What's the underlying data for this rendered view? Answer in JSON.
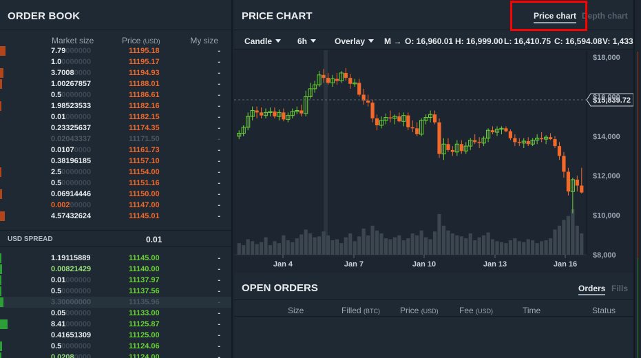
{
  "order_book": {
    "title": "ORDER BOOK",
    "columns": {
      "size": "Market size",
      "price": "Price",
      "price_unit": "(USD)",
      "my": "My size"
    },
    "asks": [
      {
        "size": "7.79",
        "dim": "000000",
        "price": "11195.18",
        "my": "-"
      },
      {
        "size": "1.0",
        "dim": "0000000",
        "price": "11195.17",
        "my": "-"
      },
      {
        "size": "3.7008",
        "dim": "0000",
        "price": "11194.93",
        "my": "-"
      },
      {
        "size": "1.00267857",
        "dim": "",
        "price": "11188.01",
        "my": "-"
      },
      {
        "size": "0.5",
        "dim": "0000000",
        "price": "11186.61",
        "my": "-"
      },
      {
        "size": "1.98523533",
        "dim": "",
        "price": "11182.16",
        "my": "-"
      },
      {
        "size": "0.01",
        "dim": "000000",
        "price": "11182.15",
        "my": "-"
      },
      {
        "size": "0.23325637",
        "dim": "",
        "price": "11174.35",
        "my": "-"
      },
      {
        "size": "0.02043337",
        "dim": "",
        "price": "11171.50",
        "my": "-"
      },
      {
        "size": "0.0107",
        "dim": "0000",
        "price": "11161.73",
        "my": "-"
      },
      {
        "size": "0.38196185",
        "dim": "",
        "price": "11157.10",
        "my": "-"
      },
      {
        "size": "2.5",
        "dim": "0000000",
        "price": "11154.00",
        "my": "-"
      },
      {
        "size": "0.5",
        "dim": "0000000",
        "price": "11151.16",
        "my": "-"
      },
      {
        "size": "0.06914446",
        "dim": "",
        "price": "11150.00",
        "my": "-"
      },
      {
        "size": "0.002",
        "dim": "00000",
        "price": "11147.00",
        "my": "-"
      },
      {
        "size": "4.57432624",
        "dim": "",
        "price": "11145.01",
        "my": "-"
      }
    ],
    "spread": {
      "label": "USD SPREAD",
      "value": "0.01"
    },
    "bids": [
      {
        "size": "1.19115889",
        "dim": "",
        "price": "11145.00",
        "my": "-"
      },
      {
        "size": "0.00821429",
        "dim": "",
        "price": "11140.00",
        "my": "-"
      },
      {
        "size": "0.01",
        "dim": "000000",
        "price": "11137.97",
        "my": "-"
      },
      {
        "size": "0.5",
        "dim": "0000000",
        "price": "11137.56",
        "my": "-"
      },
      {
        "size": "3.30000000",
        "dim": "",
        "price": "11135.96",
        "my": "-"
      },
      {
        "size": "0.05",
        "dim": "000000",
        "price": "11133.00",
        "my": "-"
      },
      {
        "size": "8.41",
        "dim": "000000",
        "price": "11125.87",
        "my": "-"
      },
      {
        "size": "0.41651309",
        "dim": "",
        "price": "11125.00",
        "my": "-"
      },
      {
        "size": "0.5",
        "dim": "0000000",
        "price": "11124.06",
        "my": "-"
      },
      {
        "size": "0.0208",
        "dim": "0000",
        "price": "11124.00",
        "my": "-"
      }
    ]
  },
  "price_chart": {
    "title": "PRICE CHART",
    "tabs": {
      "price": "Price chart",
      "depth": "Depth chart"
    },
    "toolbar": {
      "candle": "Candle",
      "interval": "6h",
      "overlay": "Overlay",
      "more": "M →",
      "open": "O: 16,960.01",
      "high": "H: 16,999.00",
      "low": "L: 16,410.75",
      "close": "C: 16,594.08",
      "volume": "V: 1,433"
    },
    "current_price_label": "$15,839.72"
  },
  "chart_data": {
    "type": "candlestick",
    "yticks": [
      "$18,000",
      "$16,000",
      "$14,000",
      "$12,000",
      "$10,000",
      "$8,000"
    ],
    "xticks": [
      "Jan 4",
      "Jan 7",
      "Jan 10",
      "Jan 13",
      "Jan 16"
    ],
    "ylim": [
      8000,
      18300
    ],
    "current_price": 15839.72,
    "colors": {
      "up": "#6cd336",
      "down": "#f2692a",
      "volume": "#3c464f"
    },
    "candles": [
      [
        14000,
        14300,
        13850,
        14150,
        0.12
      ],
      [
        14150,
        14550,
        14000,
        14450,
        0.1
      ],
      [
        14450,
        15200,
        14300,
        15000,
        0.16
      ],
      [
        15000,
        15500,
        14800,
        15300,
        0.14
      ],
      [
        15300,
        15500,
        14900,
        15200,
        0.11
      ],
      [
        15200,
        15450,
        14900,
        15050,
        0.13
      ],
      [
        15050,
        15400,
        14900,
        15200,
        0.18
      ],
      [
        15200,
        15450,
        15000,
        15250,
        0.1
      ],
      [
        15250,
        15450,
        14900,
        15000,
        0.14
      ],
      [
        15000,
        15350,
        14800,
        15200,
        0.12
      ],
      [
        15200,
        15400,
        14750,
        14850,
        0.2
      ],
      [
        14850,
        15200,
        14700,
        15050,
        0.15
      ],
      [
        15050,
        15400,
        14900,
        15250,
        0.13
      ],
      [
        15250,
        15500,
        15100,
        15300,
        0.17
      ],
      [
        15300,
        15600,
        15000,
        15150,
        0.21
      ],
      [
        15150,
        16300,
        15000,
        16000,
        0.26
      ],
      [
        16000,
        16700,
        15900,
        16400,
        0.22
      ],
      [
        16400,
        16800,
        16200,
        16600,
        0.18
      ],
      [
        16600,
        17300,
        16500,
        17100,
        0.19
      ],
      [
        17100,
        17400,
        16700,
        16950,
        0.24
      ],
      [
        16950,
        17200,
        16600,
        16700,
        0.2
      ],
      [
        16700,
        17100,
        16500,
        16900,
        0.15
      ],
      [
        16900,
        17200,
        16600,
        16800,
        0.16
      ],
      [
        16800,
        17300,
        16700,
        17200,
        0.12
      ],
      [
        17200,
        17450,
        16800,
        16950,
        0.18
      ],
      [
        16950,
        17150,
        16400,
        16650,
        0.22
      ],
      [
        16650,
        16900,
        16500,
        16700,
        0.14
      ],
      [
        16700,
        16900,
        16000,
        16100,
        0.19
      ],
      [
        16100,
        16400,
        15600,
        15800,
        0.27
      ],
      [
        15800,
        16100,
        15500,
        15700,
        0.2
      ],
      [
        15700,
        15850,
        14700,
        14900,
        0.3
      ],
      [
        14900,
        15100,
        14300,
        14550,
        0.25
      ],
      [
        14550,
        15000,
        14400,
        14800,
        0.22
      ],
      [
        14800,
        15150,
        14600,
        14950,
        0.17
      ],
      [
        14950,
        15300,
        14700,
        14900,
        0.16
      ],
      [
        14900,
        15100,
        14600,
        15000,
        0.18
      ],
      [
        15000,
        15200,
        14700,
        14750,
        0.2
      ],
      [
        14750,
        15200,
        14500,
        15050,
        0.15
      ],
      [
        15050,
        15200,
        14300,
        14450,
        0.17
      ],
      [
        14450,
        14800,
        14200,
        14400,
        0.22
      ],
      [
        14400,
        14700,
        14000,
        14100,
        0.2
      ],
      [
        14100,
        14900,
        14000,
        14800,
        0.25
      ],
      [
        14800,
        15100,
        14600,
        14950,
        0.18
      ],
      [
        14950,
        15300,
        14700,
        15100,
        0.16
      ],
      [
        15100,
        15300,
        14600,
        14700,
        0.24
      ],
      [
        14700,
        14900,
        12900,
        13100,
        0.42
      ],
      [
        13100,
        13900,
        12800,
        13600,
        0.3
      ],
      [
        13600,
        13900,
        13200,
        13300,
        0.25
      ],
      [
        13300,
        13500,
        13000,
        13200,
        0.22
      ],
      [
        13200,
        13800,
        13000,
        13600,
        0.2
      ],
      [
        13600,
        13800,
        13100,
        13250,
        0.19
      ],
      [
        13250,
        13700,
        13100,
        13500,
        0.17
      ],
      [
        13500,
        13900,
        13300,
        13800,
        0.22
      ],
      [
        13800,
        14100,
        13600,
        13700,
        0.15
      ],
      [
        13700,
        13950,
        13400,
        13650,
        0.18
      ],
      [
        13650,
        14000,
        13500,
        13900,
        0.2
      ],
      [
        13900,
        14400,
        13700,
        14300,
        0.23
      ],
      [
        14300,
        14500,
        14100,
        14200,
        0.16
      ],
      [
        14200,
        14500,
        14000,
        14350,
        0.14
      ],
      [
        14350,
        14500,
        14100,
        14400,
        0.13
      ],
      [
        14400,
        14500,
        14200,
        14250,
        0.12
      ],
      [
        14250,
        14350,
        13800,
        13900,
        0.15
      ],
      [
        13900,
        14100,
        13500,
        13700,
        0.17
      ],
      [
        13700,
        13900,
        13500,
        13650,
        0.14
      ],
      [
        13650,
        13900,
        13400,
        13750,
        0.13
      ],
      [
        13750,
        13950,
        13500,
        13600,
        0.16
      ],
      [
        13600,
        13900,
        13500,
        13800,
        0.15
      ],
      [
        13800,
        14100,
        13600,
        13900,
        0.12
      ],
      [
        13900,
        14200,
        13700,
        13850,
        0.14
      ],
      [
        13850,
        14050,
        13600,
        13950,
        0.15
      ],
      [
        13950,
        14150,
        13800,
        13850,
        0.17
      ],
      [
        13850,
        14000,
        13400,
        13500,
        0.26
      ],
      [
        13500,
        13700,
        12800,
        13000,
        0.3
      ],
      [
        13000,
        13200,
        11900,
        12200,
        0.36
      ],
      [
        12200,
        12400,
        11000,
        11200,
        0.4
      ],
      [
        11200,
        11900,
        10100,
        11800,
        0.47
      ],
      [
        11800,
        12000,
        11200,
        11500,
        0.3
      ],
      [
        11500,
        12400,
        11100,
        11150,
        0.22
      ]
    ]
  }
}
